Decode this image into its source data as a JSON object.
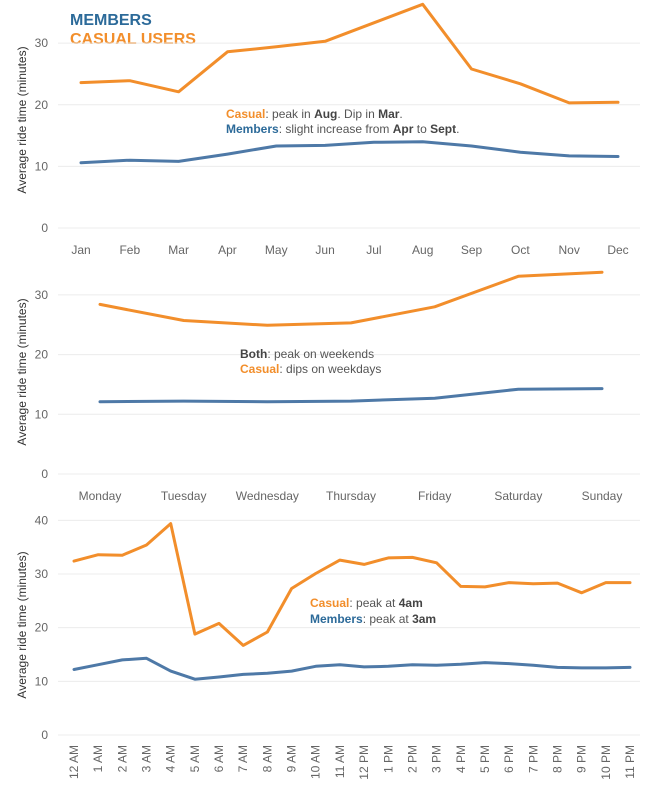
{
  "legend": {
    "members_label": "MEMBERS",
    "casual_label": "CASUAL USERS"
  },
  "colors": {
    "members": "#2c6a99",
    "members_line": "#4e79a7",
    "casual": "#f28e2b",
    "grid": "#ececec",
    "tick": "#666666"
  },
  "chart_data": [
    {
      "type": "line",
      "title": "",
      "xlabel": "",
      "ylabel": "Average ride time (minutes)",
      "ylim": [
        0,
        37
      ],
      "yticks": [
        0,
        10,
        20,
        30
      ],
      "categories": [
        "Jan",
        "Feb",
        "Mar",
        "Apr",
        "May",
        "Jun",
        "Jul",
        "Aug",
        "Sep",
        "Oct",
        "Nov",
        "Dec"
      ],
      "series": [
        {
          "key": "casual",
          "values": [
            23.6,
            23.9,
            22.1,
            28.6,
            29.4,
            30.3,
            33.3,
            36.3,
            25.8,
            23.4,
            20.3,
            20.4
          ]
        },
        {
          "key": "members",
          "values": [
            10.6,
            11.0,
            10.8,
            12.0,
            13.3,
            13.4,
            13.9,
            14.0,
            13.3,
            12.3,
            11.7,
            11.6
          ]
        }
      ],
      "annotation": [
        [
          {
            "text": "Casual",
            "bold": true,
            "color": "casual"
          },
          {
            "text": ": peak in "
          },
          {
            "text": "Aug",
            "bold": true
          },
          {
            "text": ". Dip in "
          },
          {
            "text": "Mar",
            "bold": true
          },
          {
            "text": "."
          }
        ],
        [
          {
            "text": "Members",
            "bold": true,
            "color": "members"
          },
          {
            "text": ": slight increase from "
          },
          {
            "text": "Apr",
            "bold": true
          },
          {
            "text": " to "
          },
          {
            "text": "Sept",
            "bold": true
          },
          {
            "text": "."
          }
        ]
      ]
    },
    {
      "type": "line",
      "title": "",
      "xlabel": "",
      "ylabel": "Average ride time (minutes)",
      "ylim": [
        0,
        35
      ],
      "yticks": [
        0,
        10,
        20,
        30
      ],
      "categories": [
        "Monday",
        "Tuesday",
        "Wednesday",
        "Thursday",
        "Friday",
        "Saturday",
        "Sunday"
      ],
      "series": [
        {
          "key": "casual",
          "values": [
            28.4,
            25.7,
            24.9,
            25.3,
            28.0,
            33.1,
            33.8
          ]
        },
        {
          "key": "members",
          "values": [
            12.1,
            12.2,
            12.1,
            12.2,
            12.7,
            14.2,
            14.3
          ]
        }
      ],
      "annotation": [
        [
          {
            "text": "Both",
            "bold": true
          },
          {
            "text": ": peak on weekends"
          }
        ],
        [
          {
            "text": "Casual",
            "bold": true,
            "color": "casual"
          },
          {
            "text": ": dips on weekdays"
          }
        ]
      ]
    },
    {
      "type": "line",
      "title": "",
      "xlabel": "",
      "ylabel": "Average ride time (minutes)",
      "ylim": [
        0,
        41
      ],
      "yticks": [
        0,
        10,
        20,
        30,
        40
      ],
      "categories": [
        "12 AM",
        "1 AM",
        "2 AM",
        "3 AM",
        "4 AM",
        "5 AM",
        "6 AM",
        "7 AM",
        "8 AM",
        "9 AM",
        "10 AM",
        "11 AM",
        "12 PM",
        "1 PM",
        "2 PM",
        "3 PM",
        "4 PM",
        "5 PM",
        "6 PM",
        "7 PM",
        "8 PM",
        "9 PM",
        "10 PM",
        "11 PM"
      ],
      "series": [
        {
          "key": "casual",
          "values": [
            32.4,
            33.6,
            33.5,
            35.4,
            39.4,
            18.8,
            20.8,
            16.7,
            19.2,
            27.3,
            30.1,
            32.6,
            31.8,
            33.0,
            33.1,
            32.1,
            27.7,
            27.6,
            28.4,
            28.2,
            28.3,
            26.5,
            28.4,
            28.4
          ]
        },
        {
          "key": "members",
          "values": [
            12.2,
            13.1,
            14.0,
            14.3,
            11.9,
            10.4,
            10.8,
            11.3,
            11.5,
            11.9,
            12.8,
            13.1,
            12.7,
            12.8,
            13.1,
            13.0,
            13.2,
            13.5,
            13.3,
            13.0,
            12.6,
            12.5,
            12.5,
            12.6
          ]
        }
      ],
      "annotation": [
        [
          {
            "text": "Casual",
            "bold": true,
            "color": "casual"
          },
          {
            "text": ": peak at "
          },
          {
            "text": "4am",
            "bold": true
          }
        ],
        [
          {
            "text": "Members",
            "bold": true,
            "color": "members"
          },
          {
            "text": ": peak at "
          },
          {
            "text": "3am",
            "bold": true
          }
        ]
      ]
    }
  ]
}
